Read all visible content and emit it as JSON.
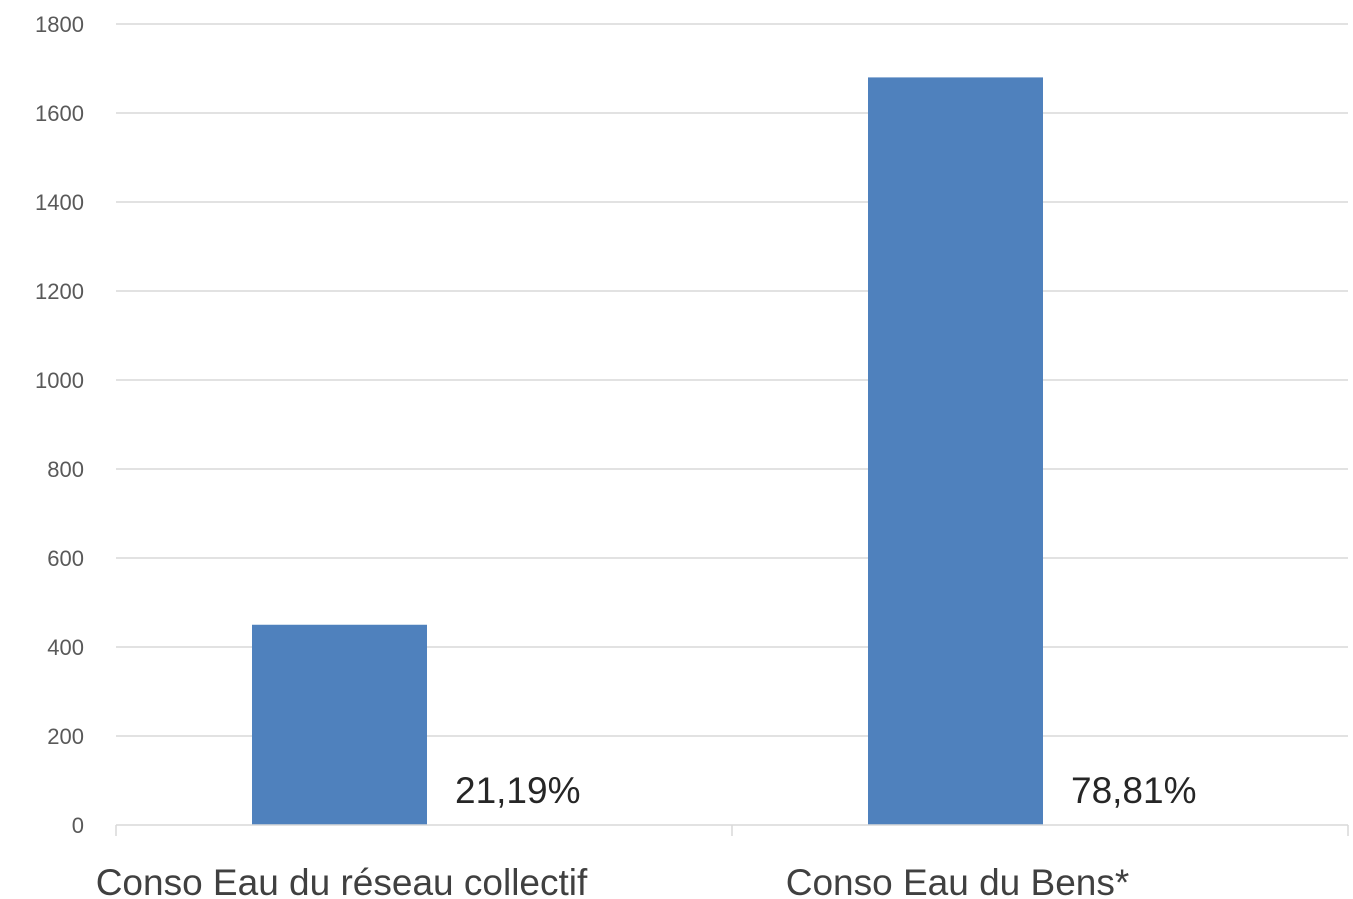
{
  "chart_data": {
    "type": "bar",
    "title": "",
    "xlabel": "",
    "ylabel": "",
    "categories": [
      "Conso Eau du réseau collectif",
      "Conso Eau du Bens*"
    ],
    "values": [
      450,
      1680
    ],
    "data_labels": [
      "21,19%",
      "78,81%"
    ],
    "ylim": [
      0,
      1800
    ],
    "yticks": [
      0,
      200,
      400,
      600,
      800,
      1000,
      1200,
      1400,
      1600,
      1800
    ],
    "ytick_labels": [
      "0",
      "200",
      "400",
      "600",
      "800",
      "1000",
      "1200",
      "1400",
      "1600",
      "1800"
    ],
    "grid": true,
    "legend": "none",
    "colors": {
      "bar": "#4f81bd"
    }
  }
}
